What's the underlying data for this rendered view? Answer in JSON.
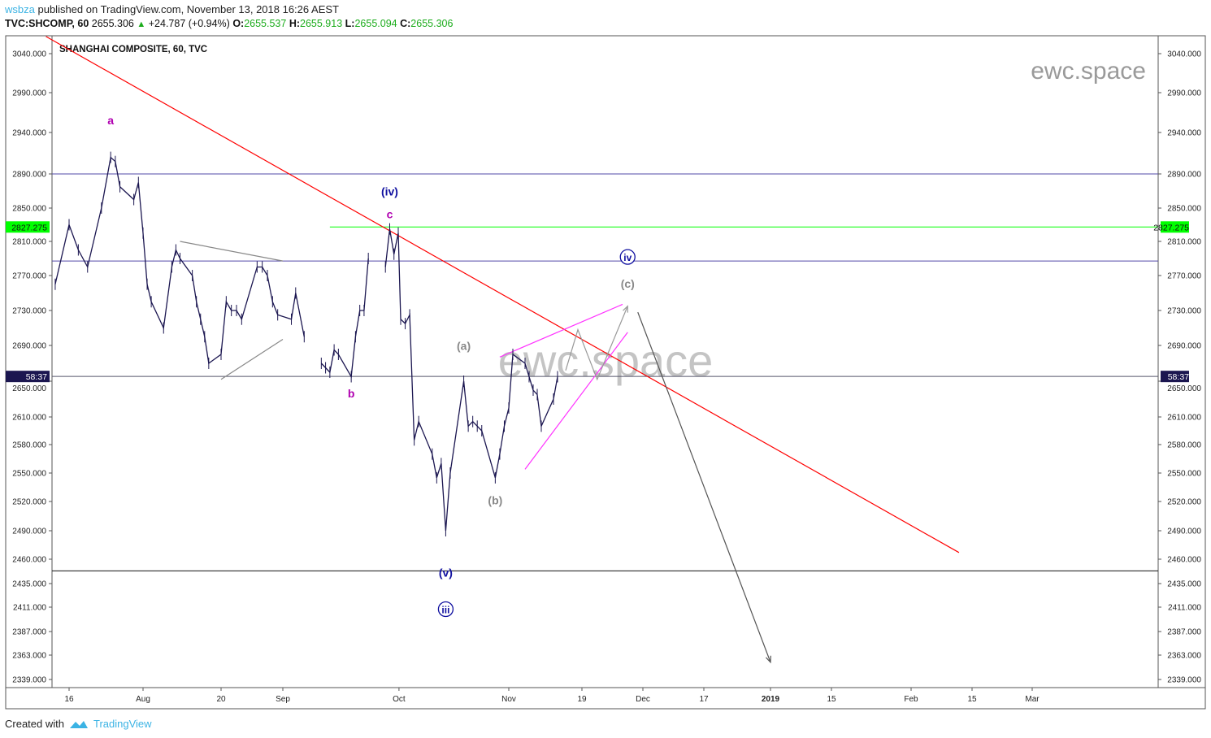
{
  "header": {
    "user": "wsbza",
    "published": "published on TradingView.com, November 13, 2018 16:26 AEST",
    "symbol": "TVC:SHCOMP, 60",
    "last": "2655.306",
    "change": "+24.787 (+0.94%)",
    "o_label": "O:",
    "o": "2655.537",
    "h_label": "H:",
    "h": "2655.913",
    "l_label": "L:",
    "l": "2655.094",
    "c_label": "C:",
    "c": "2655.306"
  },
  "footer": {
    "created": "Created with",
    "brand": "TradingView"
  },
  "chart_data": {
    "type": "line",
    "title": "SHANGHAI COMPOSITE, 60, TVC",
    "watermark": "ewc.space",
    "y_scale": "log",
    "y_ticks": [
      3040,
      2990,
      2940,
      2890,
      2850,
      2810,
      2770,
      2730,
      2690,
      2650,
      2610,
      2580,
      2550,
      2520,
      2490,
      2460,
      2435,
      2411,
      2387,
      2363,
      2339
    ],
    "y_tick_labels": [
      "3040.000",
      "2990.000",
      "2940.000",
      "2890.000",
      "2850.000",
      "2810.000",
      "2770.000",
      "2730.000",
      "2690.000",
      "2650.000",
      "2610.000",
      "2580.000",
      "2550.000",
      "2520.000",
      "2490.000",
      "2460.000",
      "2435.000",
      "2411.000",
      "2387.000",
      "2363.000",
      "2339.000"
    ],
    "x_ticks": [
      {
        "date": "2018-07-16",
        "label": "16"
      },
      {
        "date": "2018-08-01",
        "label": "Aug"
      },
      {
        "date": "2018-08-20",
        "label": "20"
      },
      {
        "date": "2018-09-01",
        "label": "Sep"
      },
      {
        "date": "2018-10-01",
        "label": "Oct"
      },
      {
        "date": "2018-11-01",
        "label": "Nov"
      },
      {
        "date": "2018-11-19",
        "label": "19"
      },
      {
        "date": "2018-12-01",
        "label": "Dec"
      },
      {
        "date": "2018-12-17",
        "label": "17"
      },
      {
        "date": "2019-01-01",
        "label": "2019"
      },
      {
        "date": "2019-01-15",
        "label": "15"
      },
      {
        "date": "2019-02-01",
        "label": "Feb"
      },
      {
        "date": "2019-02-15",
        "label": "15"
      },
      {
        "date": "2019-03-01",
        "label": "Mar"
      }
    ],
    "price_markers": [
      {
        "label": "2827.275",
        "value": 2827.275,
        "color": "#00ff00"
      },
      {
        "label": "58:37",
        "value": 2655.306,
        "color": "#1b1650"
      }
    ],
    "series": [
      {
        "values": [
          [
            "2018-07-13",
            2760
          ],
          [
            "2018-07-16",
            2830
          ],
          [
            "2018-07-18",
            2800
          ],
          [
            "2018-07-20",
            2780
          ],
          [
            "2018-07-23",
            2850
          ],
          [
            "2018-07-25",
            2910
          ],
          [
            "2018-07-26",
            2905
          ],
          [
            "2018-07-27",
            2875
          ],
          [
            "2018-07-30",
            2860
          ],
          [
            "2018-07-31",
            2880
          ],
          [
            "2018-08-01",
            2820
          ],
          [
            "2018-08-02",
            2760
          ],
          [
            "2018-08-03",
            2740
          ],
          [
            "2018-08-06",
            2710
          ],
          [
            "2018-08-08",
            2780
          ],
          [
            "2018-08-09",
            2800
          ],
          [
            "2018-08-10",
            2790
          ],
          [
            "2018-08-13",
            2770
          ],
          [
            "2018-08-14",
            2740
          ],
          [
            "2018-08-15",
            2720
          ],
          [
            "2018-08-16",
            2700
          ],
          [
            "2018-08-17",
            2670
          ],
          [
            "2018-08-20",
            2680
          ],
          [
            "2018-08-21",
            2740
          ],
          [
            "2018-08-22",
            2730
          ],
          [
            "2018-08-23",
            2730
          ],
          [
            "2018-08-24",
            2720
          ],
          [
            "2018-08-27",
            2780
          ],
          [
            "2018-08-28",
            2780
          ],
          [
            "2018-08-29",
            2770
          ],
          [
            "2018-08-30",
            2740
          ],
          [
            "2018-08-31",
            2725
          ],
          [
            "2018-09-03",
            2720
          ],
          [
            "2018-09-04",
            2750
          ],
          [
            "2018-09-06",
            2700
          ],
          [
            "2018-09-10",
            2670
          ],
          [
            "2018-09-11",
            2665
          ],
          [
            "2018-09-12",
            2660
          ],
          [
            "2018-09-13",
            2685
          ],
          [
            "2018-09-14",
            2680
          ],
          [
            "2018-09-17",
            2655
          ],
          [
            "2018-09-18",
            2700
          ],
          [
            "2018-09-19",
            2730
          ],
          [
            "2018-09-20",
            2730
          ],
          [
            "2018-09-21",
            2790
          ],
          [
            "2018-09-25",
            2780
          ],
          [
            "2018-09-26",
            2825
          ],
          [
            "2018-09-27",
            2795
          ],
          [
            "2018-09-28",
            2820
          ],
          [
            "2018-10-08",
            2720
          ],
          [
            "2018-10-09",
            2715
          ],
          [
            "2018-10-10",
            2725
          ],
          [
            "2018-10-11",
            2585
          ],
          [
            "2018-10-12",
            2605
          ],
          [
            "2018-10-15",
            2570
          ],
          [
            "2018-10-16",
            2545
          ],
          [
            "2018-10-17",
            2560
          ],
          [
            "2018-10-18",
            2490
          ],
          [
            "2018-10-19",
            2550
          ],
          [
            "2018-10-22",
            2650
          ],
          [
            "2018-10-23",
            2600
          ],
          [
            "2018-10-24",
            2605
          ],
          [
            "2018-10-25",
            2600
          ],
          [
            "2018-10-26",
            2595
          ],
          [
            "2018-10-29",
            2545
          ],
          [
            "2018-10-30",
            2570
          ],
          [
            "2018-10-31",
            2600
          ],
          [
            "2018-11-01",
            2620
          ],
          [
            "2018-11-02",
            2680
          ],
          [
            "2018-11-05",
            2670
          ],
          [
            "2018-11-06",
            2655
          ],
          [
            "2018-11-07",
            2640
          ],
          [
            "2018-11-08",
            2635
          ],
          [
            "2018-11-09",
            2600
          ],
          [
            "2018-11-12",
            2630
          ],
          [
            "2018-11-13",
            2655
          ]
        ],
        "color": "#1b1650"
      }
    ],
    "horizontal_lines": [
      {
        "value": 2890,
        "color": "#5048a8"
      },
      {
        "value": 2827.275,
        "color": "#00ff00",
        "from": "2018-09-12"
      },
      {
        "value": 2787,
        "color": "#5048a8"
      },
      {
        "value": 2655.306,
        "color": "#55556a"
      },
      {
        "value": 2448,
        "color": "#111111"
      }
    ],
    "trend_lines": [
      {
        "from": [
          "2018-07-11",
          3062
        ],
        "to": [
          "2019-02-12",
          2467
        ],
        "color": "#ff0000"
      },
      {
        "from": [
          "2018-08-10",
          2810
        ],
        "to": [
          "2018-09-01",
          2787
        ],
        "color": "#888888"
      },
      {
        "from": [
          "2018-08-20",
          2652
        ],
        "to": [
          "2018-09-01",
          2697
        ],
        "color": "#888888"
      },
      {
        "from": [
          "2018-10-30",
          2677
        ],
        "to": [
          "2018-11-27",
          2737
        ],
        "color": "#ff33ff"
      },
      {
        "from": [
          "2018-11-05",
          2554
        ],
        "to": [
          "2018-11-28",
          2705
        ],
        "color": "#ff33ff"
      }
    ],
    "arrows": [
      {
        "points": [
          [
            "2018-11-15",
            2662
          ],
          [
            "2018-11-18",
            2708
          ],
          [
            "2018-11-22",
            2652
          ],
          [
            "2018-11-28",
            2735
          ]
        ],
        "color": "#999999"
      },
      {
        "points": [
          [
            "2018-11-30",
            2728
          ],
          [
            "2019-01-01",
            2356
          ]
        ],
        "color": "#555555"
      }
    ],
    "annotations": [
      {
        "text": "a",
        "date": "2018-07-25",
        "price": 2950,
        "color": "#b000b0",
        "circled": false
      },
      {
        "text": "(iv)",
        "date": "2018-09-26",
        "price": 2865,
        "color": "#1010a0",
        "circled": false
      },
      {
        "text": "c",
        "date": "2018-09-26",
        "price": 2838,
        "color": "#b000b0",
        "circled": false
      },
      {
        "text": "b",
        "date": "2018-09-17",
        "price": 2632,
        "color": "#b000b0",
        "circled": false
      },
      {
        "text": "(a)",
        "date": "2018-10-22",
        "price": 2685,
        "color": "#888888",
        "circled": false
      },
      {
        "text": "(b)",
        "date": "2018-10-29",
        "price": 2517,
        "color": "#888888",
        "circled": false
      },
      {
        "text": "(v)",
        "date": "2018-10-18",
        "price": 2442,
        "color": "#1010a0",
        "circled": false
      },
      {
        "text": "iii",
        "date": "2018-10-18",
        "price": 2405,
        "color": "#1010a0",
        "circled": true
      },
      {
        "text": "iv",
        "date": "2018-11-28",
        "price": 2787,
        "color": "#1010a0",
        "circled": true
      },
      {
        "text": "(c)",
        "date": "2018-11-28",
        "price": 2756,
        "color": "#888888",
        "circled": false
      }
    ]
  }
}
